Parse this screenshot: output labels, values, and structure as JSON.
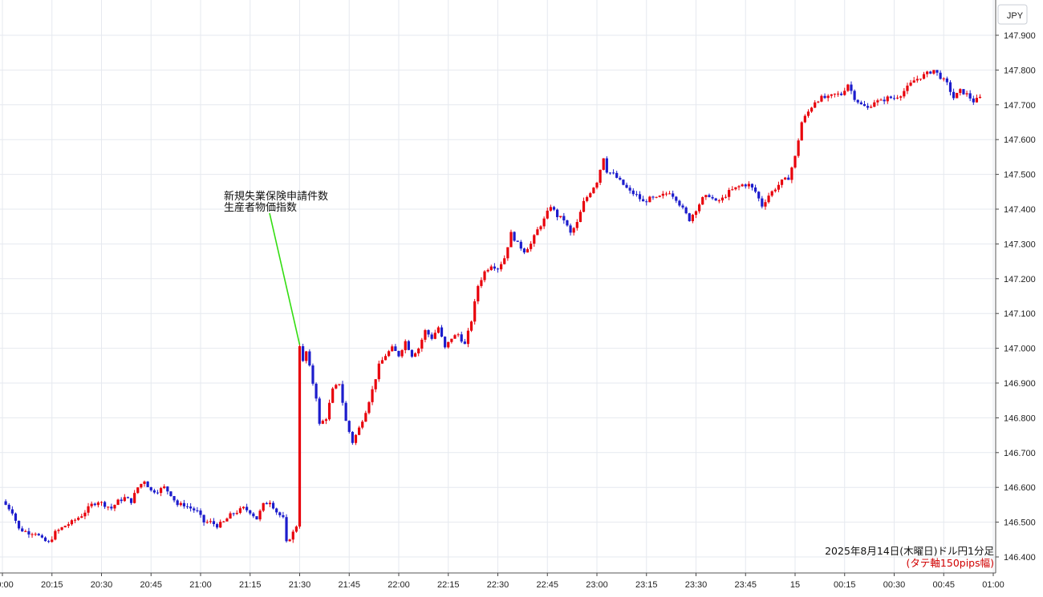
{
  "chart_data": {
    "type": "candlestick",
    "currency_label": "JPY",
    "caption_line1": "2025年8月14日(木曜日)ドル円1分足",
    "caption_line2": "(タテ軸150pips幅)",
    "annotation": {
      "lines": [
        "新規失業保険申請件数",
        "生産者物価指数"
      ],
      "time": "21:30"
    },
    "y_ticks": [
      "147.900",
      "147.800",
      "147.700",
      "147.600",
      "147.500",
      "147.400",
      "147.300",
      "147.200",
      "147.100",
      "147.000",
      "146.900",
      "146.800",
      "146.700",
      "146.600",
      "146.500",
      "146.400"
    ],
    "x_ticks": [
      "20:00",
      "20:15",
      "20:30",
      "20:45",
      "21:00",
      "21:15",
      "21:30",
      "21:45",
      "22:00",
      "22:15",
      "22:30",
      "22:45",
      "23:00",
      "23:15",
      "23:30",
      "23:45",
      "15",
      "00:15",
      "00:30",
      "00:45",
      "01:00"
    ],
    "ylim": [
      146.37,
      147.92
    ],
    "colors": {
      "up": "#e8000b",
      "down": "#1c1ccc",
      "annotation_line": "#33dd11",
      "grid": "#e6e9ef"
    },
    "path": [
      [
        "20:00",
        146.56
      ],
      [
        "20:03",
        146.53
      ],
      [
        "20:05",
        146.48
      ],
      [
        "20:08",
        146.47
      ],
      [
        "20:10",
        146.47
      ],
      [
        "20:12",
        146.45
      ],
      [
        "20:14",
        146.44
      ],
      [
        "20:16",
        146.47
      ],
      [
        "20:19",
        146.49
      ],
      [
        "20:21",
        146.5
      ],
      [
        "20:24",
        146.52
      ],
      [
        "20:27",
        146.55
      ],
      [
        "20:29",
        146.56
      ],
      [
        "20:31",
        146.55
      ],
      [
        "20:33",
        146.54
      ],
      [
        "20:35",
        146.56
      ],
      [
        "20:37",
        146.57
      ],
      [
        "20:39",
        146.56
      ],
      [
        "20:41",
        146.6
      ],
      [
        "20:43",
        146.62
      ],
      [
        "20:45",
        146.59
      ],
      [
        "20:47",
        146.59
      ],
      [
        "20:49",
        146.6
      ],
      [
        "20:51",
        146.58
      ],
      [
        "20:53",
        146.55
      ],
      [
        "20:55",
        146.55
      ],
      [
        "20:57",
        146.54
      ],
      [
        "20:59",
        146.53
      ],
      [
        "21:01",
        146.5
      ],
      [
        "21:03",
        146.5
      ],
      [
        "21:05",
        146.49
      ],
      [
        "21:07",
        146.5
      ],
      [
        "21:09",
        146.52
      ],
      [
        "21:11",
        146.53
      ],
      [
        "21:13",
        146.54
      ],
      [
        "21:15",
        146.53
      ],
      [
        "21:17",
        146.51
      ],
      [
        "21:19",
        146.55
      ],
      [
        "21:21",
        146.56
      ],
      [
        "21:23",
        146.53
      ],
      [
        "21:25",
        146.51
      ],
      [
        "21:26",
        146.44
      ],
      [
        "21:28",
        146.47
      ],
      [
        "21:29",
        146.49
      ],
      [
        "21:30",
        147.01
      ],
      [
        "21:31",
        146.96
      ],
      [
        "21:32",
        146.99
      ],
      [
        "21:34",
        146.9
      ],
      [
        "21:35",
        146.86
      ],
      [
        "21:36",
        146.78
      ],
      [
        "21:38",
        146.8
      ],
      [
        "21:40",
        146.88
      ],
      [
        "21:42",
        146.9
      ],
      [
        "21:44",
        146.79
      ],
      [
        "21:46",
        146.73
      ],
      [
        "21:48",
        146.77
      ],
      [
        "21:50",
        146.82
      ],
      [
        "21:52",
        146.88
      ],
      [
        "21:54",
        146.95
      ],
      [
        "21:56",
        146.98
      ],
      [
        "21:58",
        147.0
      ],
      [
        "22:00",
        146.98
      ],
      [
        "22:02",
        147.02
      ],
      [
        "22:04",
        146.98
      ],
      [
        "22:06",
        147.0
      ],
      [
        "22:08",
        147.05
      ],
      [
        "22:10",
        147.03
      ],
      [
        "22:12",
        147.06
      ],
      [
        "22:14",
        147.0
      ],
      [
        "22:16",
        147.03
      ],
      [
        "22:18",
        147.04
      ],
      [
        "22:20",
        147.01
      ],
      [
        "22:22",
        147.08
      ],
      [
        "22:24",
        147.18
      ],
      [
        "22:26",
        147.22
      ],
      [
        "22:28",
        147.24
      ],
      [
        "22:30",
        147.23
      ],
      [
        "22:32",
        147.26
      ],
      [
        "22:34",
        147.33
      ],
      [
        "22:36",
        147.3
      ],
      [
        "22:38",
        147.28
      ],
      [
        "22:40",
        147.3
      ],
      [
        "22:42",
        147.34
      ],
      [
        "22:44",
        147.37
      ],
      [
        "22:46",
        147.41
      ],
      [
        "22:48",
        147.38
      ],
      [
        "22:50",
        147.37
      ],
      [
        "22:52",
        147.33
      ],
      [
        "22:54",
        147.36
      ],
      [
        "22:56",
        147.42
      ],
      [
        "22:58",
        147.45
      ],
      [
        "23:00",
        147.48
      ],
      [
        "23:02",
        147.55
      ],
      [
        "23:03",
        147.51
      ],
      [
        "23:05",
        147.5
      ],
      [
        "23:08",
        147.47
      ],
      [
        "23:10",
        147.45
      ],
      [
        "23:12",
        147.44
      ],
      [
        "23:14",
        147.42
      ],
      [
        "23:16",
        147.43
      ],
      [
        "23:18",
        147.43
      ],
      [
        "23:20",
        147.44
      ],
      [
        "23:22",
        147.45
      ],
      [
        "23:24",
        147.43
      ],
      [
        "23:26",
        147.4
      ],
      [
        "23:28",
        147.37
      ],
      [
        "23:30",
        147.4
      ],
      [
        "23:32",
        147.43
      ],
      [
        "23:34",
        147.44
      ],
      [
        "23:36",
        147.42
      ],
      [
        "23:38",
        147.43
      ],
      [
        "23:40",
        147.45
      ],
      [
        "23:42",
        147.46
      ],
      [
        "23:44",
        147.47
      ],
      [
        "23:46",
        147.47
      ],
      [
        "23:48",
        147.45
      ],
      [
        "23:50",
        147.41
      ],
      [
        "23:52",
        147.44
      ],
      [
        "23:54",
        147.46
      ],
      [
        "23:56",
        147.48
      ],
      [
        "23:58",
        147.49
      ],
      [
        "00:00",
        147.55
      ],
      [
        "00:02",
        147.65
      ],
      [
        "00:04",
        147.68
      ],
      [
        "00:06",
        147.71
      ],
      [
        "00:08",
        147.72
      ],
      [
        "00:10",
        147.72
      ],
      [
        "00:12",
        147.73
      ],
      [
        "00:14",
        147.73
      ],
      [
        "00:16",
        147.76
      ],
      [
        "00:18",
        147.72
      ],
      [
        "00:20",
        147.7
      ],
      [
        "00:22",
        147.69
      ],
      [
        "00:24",
        147.71
      ],
      [
        "00:26",
        147.71
      ],
      [
        "00:28",
        147.72
      ],
      [
        "00:30",
        147.72
      ],
      [
        "00:32",
        147.73
      ],
      [
        "00:34",
        147.75
      ],
      [
        "00:36",
        147.77
      ],
      [
        "00:38",
        147.78
      ],
      [
        "00:40",
        147.79
      ],
      [
        "00:42",
        147.8
      ],
      [
        "00:44",
        147.78
      ],
      [
        "00:46",
        147.76
      ],
      [
        "00:48",
        147.72
      ],
      [
        "00:50",
        147.74
      ],
      [
        "00:52",
        147.73
      ],
      [
        "00:54",
        147.71
      ],
      [
        "00:56",
        147.72
      ]
    ]
  }
}
